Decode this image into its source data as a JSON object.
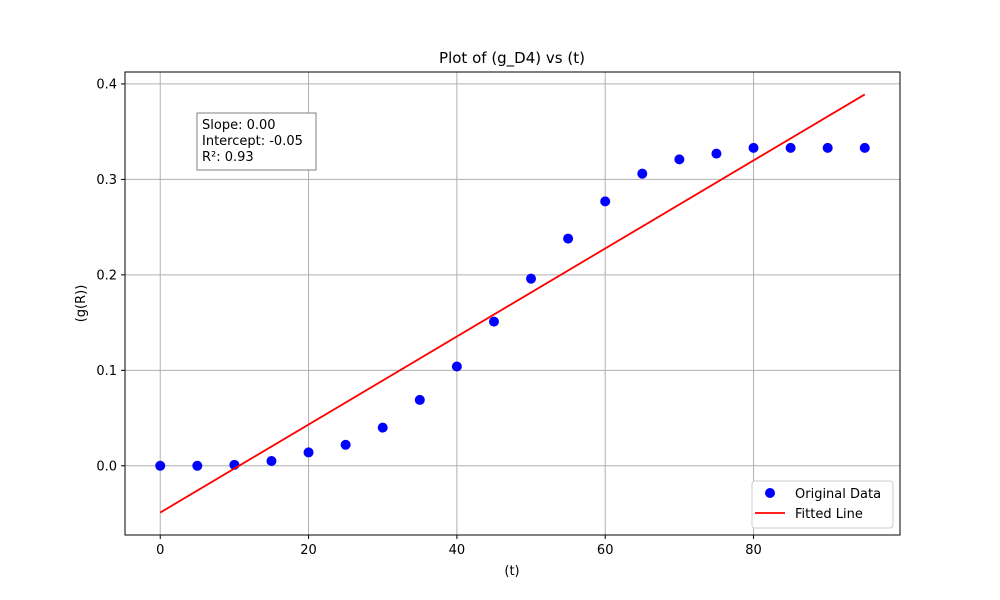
{
  "chart_data": {
    "type": "scatter",
    "title": "Plot of (g_D4) vs (t)",
    "xlabel": "(t)",
    "ylabel": "(g(R))",
    "xlim": [
      -4.75,
      99.75
    ],
    "ylim": [
      -0.0725,
      0.4125
    ],
    "xticks": [
      0,
      20,
      40,
      60,
      80
    ],
    "yticks": [
      0.0,
      0.1,
      0.2,
      0.3,
      0.4
    ],
    "xtick_labels": [
      "0",
      "20",
      "40",
      "60",
      "80"
    ],
    "ytick_labels": [
      "0.0",
      "0.1",
      "0.2",
      "0.3",
      "0.4"
    ],
    "grid": true,
    "legend_position": "bottom-right",
    "series": [
      {
        "name": "Original Data",
        "kind": "scatter",
        "color": "#0000ff",
        "x": [
          0,
          5,
          10,
          15,
          20,
          25,
          30,
          35,
          40,
          45,
          50,
          55,
          60,
          65,
          70,
          75,
          80,
          85,
          90,
          95
        ],
        "y": [
          0.0,
          0.0,
          0.001,
          0.005,
          0.014,
          0.022,
          0.04,
          0.069,
          0.104,
          0.151,
          0.196,
          0.238,
          0.277,
          0.306,
          0.321,
          0.327,
          0.333,
          0.333,
          0.333,
          0.333
        ]
      },
      {
        "name": "Fitted Line",
        "kind": "line",
        "color": "#ff0000",
        "x": [
          0,
          95
        ],
        "y": [
          -0.049,
          0.389
        ]
      }
    ],
    "annotation": {
      "lines": [
        "Slope: 0.00",
        "Intercept: -0.05",
        "R²: 0.93"
      ]
    }
  }
}
